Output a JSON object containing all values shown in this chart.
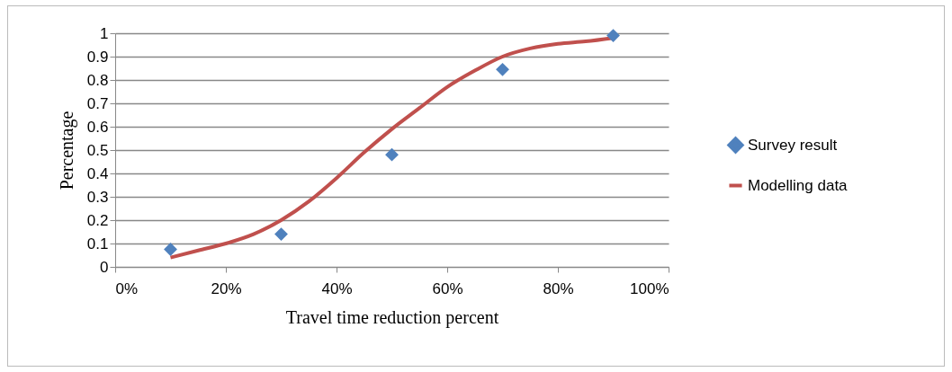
{
  "chart_data": {
    "type": "scatter",
    "xlabel": "Travel time reduction percent",
    "ylabel": "Percentage",
    "xlim": [
      0,
      1
    ],
    "xticks": [
      {
        "value": 0,
        "label": "0%"
      },
      {
        "value": 0.2,
        "label": "20%"
      },
      {
        "value": 0.4,
        "label": "40%"
      },
      {
        "value": 0.6,
        "label": "60%"
      },
      {
        "value": 0.8,
        "label": "80%"
      },
      {
        "value": 1,
        "label": "100%"
      }
    ],
    "ylim": [
      0,
      1
    ],
    "yticks": [
      0,
      0.1,
      0.2,
      0.3,
      0.4,
      0.5,
      0.6,
      0.7,
      0.8,
      0.9,
      1
    ],
    "grid": "y",
    "legend": "right",
    "series": [
      {
        "name": "Survey result",
        "marker": "diamond",
        "color": "#4f81bd",
        "x": [
          0.1,
          0.3,
          0.5,
          0.7,
          0.9
        ],
        "values": [
          0.075,
          0.14,
          0.48,
          0.845,
          0.99
        ]
      },
      {
        "name": "Modelling data",
        "type": "line",
        "marker": "none",
        "color": "#c0504d",
        "x": [
          0.1,
          0.15,
          0.2,
          0.25,
          0.3,
          0.35,
          0.4,
          0.45,
          0.5,
          0.55,
          0.6,
          0.65,
          0.7,
          0.75,
          0.8,
          0.85,
          0.9
        ],
        "values": [
          0.04,
          0.07,
          0.1,
          0.14,
          0.2,
          0.28,
          0.38,
          0.49,
          0.59,
          0.68,
          0.77,
          0.84,
          0.9,
          0.935,
          0.955,
          0.965,
          0.98
        ]
      }
    ]
  }
}
